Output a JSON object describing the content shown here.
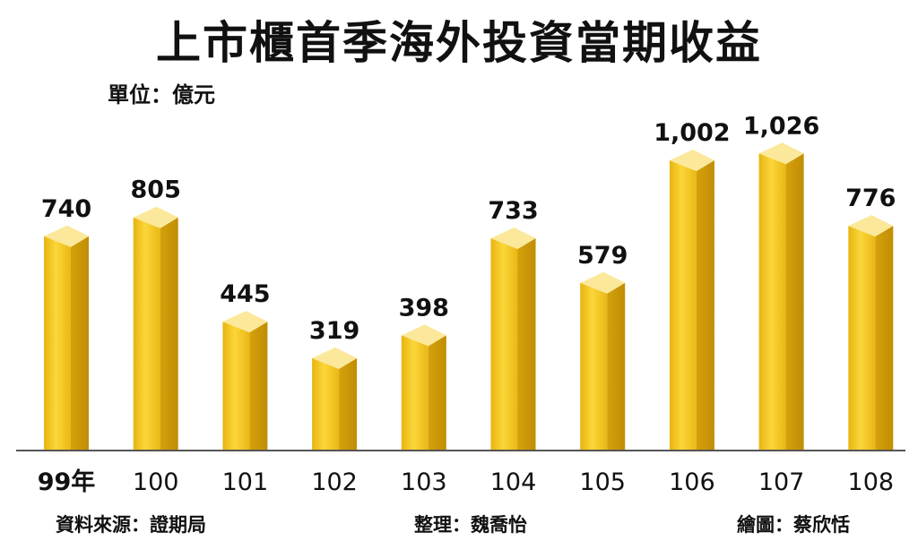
{
  "chart_data": {
    "type": "bar",
    "title": "上市櫃首季海外投資當期收益",
    "unit": "單位：億元",
    "categories": [
      "99年",
      "100",
      "101",
      "102",
      "103",
      "104",
      "105",
      "106",
      "107",
      "108"
    ],
    "values": [
      740,
      805,
      445,
      319,
      398,
      733,
      579,
      1002,
      1026,
      776
    ],
    "value_labels": [
      "740",
      "805",
      "445",
      "319",
      "398",
      "733",
      "579",
      "1,002",
      "1,026",
      "776"
    ],
    "ylim": [
      0,
      1100
    ],
    "grid": false,
    "legend": "none",
    "colors": {
      "bar_front": "#f2c21a",
      "bar_side": "#d9a70c",
      "bar_top": "#fbe89a",
      "baseline": "#555555"
    }
  },
  "footer": {
    "source": "資料來源：證期局",
    "editor": "整理：魏喬怡",
    "artist": "繪圖：蔡欣恬"
  }
}
